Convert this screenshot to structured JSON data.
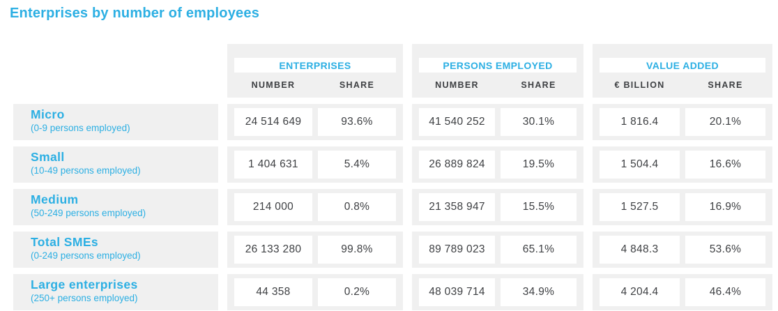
{
  "title": "Enterprises by number of employees",
  "colors": {
    "accent": "#2cafe3",
    "stripe_background": "#f0f0f0",
    "value_text": "#3d3f42"
  },
  "table": {
    "groups": [
      {
        "title": "ENTERPRISES",
        "columns": [
          "NUMBER",
          "SHARE"
        ]
      },
      {
        "title": "PERSONS EMPLOYED",
        "columns": [
          "NUMBER",
          "SHARE"
        ]
      },
      {
        "title": "VALUE ADDED",
        "columns": [
          "€ BILLION",
          "SHARE"
        ]
      }
    ],
    "rows": [
      {
        "label": "Micro",
        "sublabel": "(0-9 persons employed)",
        "values": [
          "24 514 649",
          "93.6%",
          "41 540 252",
          "30.1%",
          "1 816.4",
          "20.1%"
        ]
      },
      {
        "label": "Small",
        "sublabel": "(10-49 persons employed)",
        "values": [
          "1 404 631",
          "5.4%",
          "26 889 824",
          "19.5%",
          "1 504.4",
          "16.6%"
        ]
      },
      {
        "label": "Medium",
        "sublabel": "(50-249 persons employed)",
        "values": [
          "214 000",
          "0.8%",
          "21 358 947",
          "15.5%",
          "1 527.5",
          "16.9%"
        ]
      },
      {
        "label": "Total SMEs",
        "sublabel": "(0-249 persons employed)",
        "values": [
          "26 133 280",
          "99.8%",
          "89 789 023",
          "65.1%",
          "4 848.3",
          "53.6%"
        ]
      },
      {
        "label": "Large enterprises",
        "sublabel": "(250+ persons employed)",
        "values": [
          "44 358",
          "0.2%",
          "48 039 714",
          "34.9%",
          "4 204.4",
          "46.4%"
        ]
      }
    ]
  },
  "chart_data": {
    "type": "table",
    "title": "Enterprises by number of employees",
    "column_groups": [
      "ENTERPRISES",
      "PERSONS EMPLOYED",
      "VALUE ADDED"
    ],
    "columns": [
      "Enterprises - Number",
      "Enterprises - Share (%)",
      "Persons employed - Number",
      "Persons employed - Share (%)",
      "Value added - € Billion",
      "Value added - Share (%)"
    ],
    "rows": [
      {
        "category": "Micro (0-9 persons employed)",
        "enterprises_number": 24514649,
        "enterprises_share": 93.6,
        "persons_employed_number": 41540252,
        "persons_employed_share": 30.1,
        "value_added_billion": 1816.4,
        "value_added_share": 20.1
      },
      {
        "category": "Small (10-49 persons employed)",
        "enterprises_number": 1404631,
        "enterprises_share": 5.4,
        "persons_employed_number": 26889824,
        "persons_employed_share": 19.5,
        "value_added_billion": 1504.4,
        "value_added_share": 16.6
      },
      {
        "category": "Medium (50-249 persons employed)",
        "enterprises_number": 214000,
        "enterprises_share": 0.8,
        "persons_employed_number": 21358947,
        "persons_employed_share": 15.5,
        "value_added_billion": 1527.5,
        "value_added_share": 16.9
      },
      {
        "category": "Total SMEs (0-249 persons employed)",
        "enterprises_number": 26133280,
        "enterprises_share": 99.8,
        "persons_employed_number": 89789023,
        "persons_employed_share": 65.1,
        "value_added_billion": 4848.3,
        "value_added_share": 53.6
      },
      {
        "category": "Large enterprises (250+ persons employed)",
        "enterprises_number": 44358,
        "enterprises_share": 0.2,
        "persons_employed_number": 48039714,
        "persons_employed_share": 34.9,
        "value_added_billion": 4204.4,
        "value_added_share": 46.4
      }
    ]
  }
}
